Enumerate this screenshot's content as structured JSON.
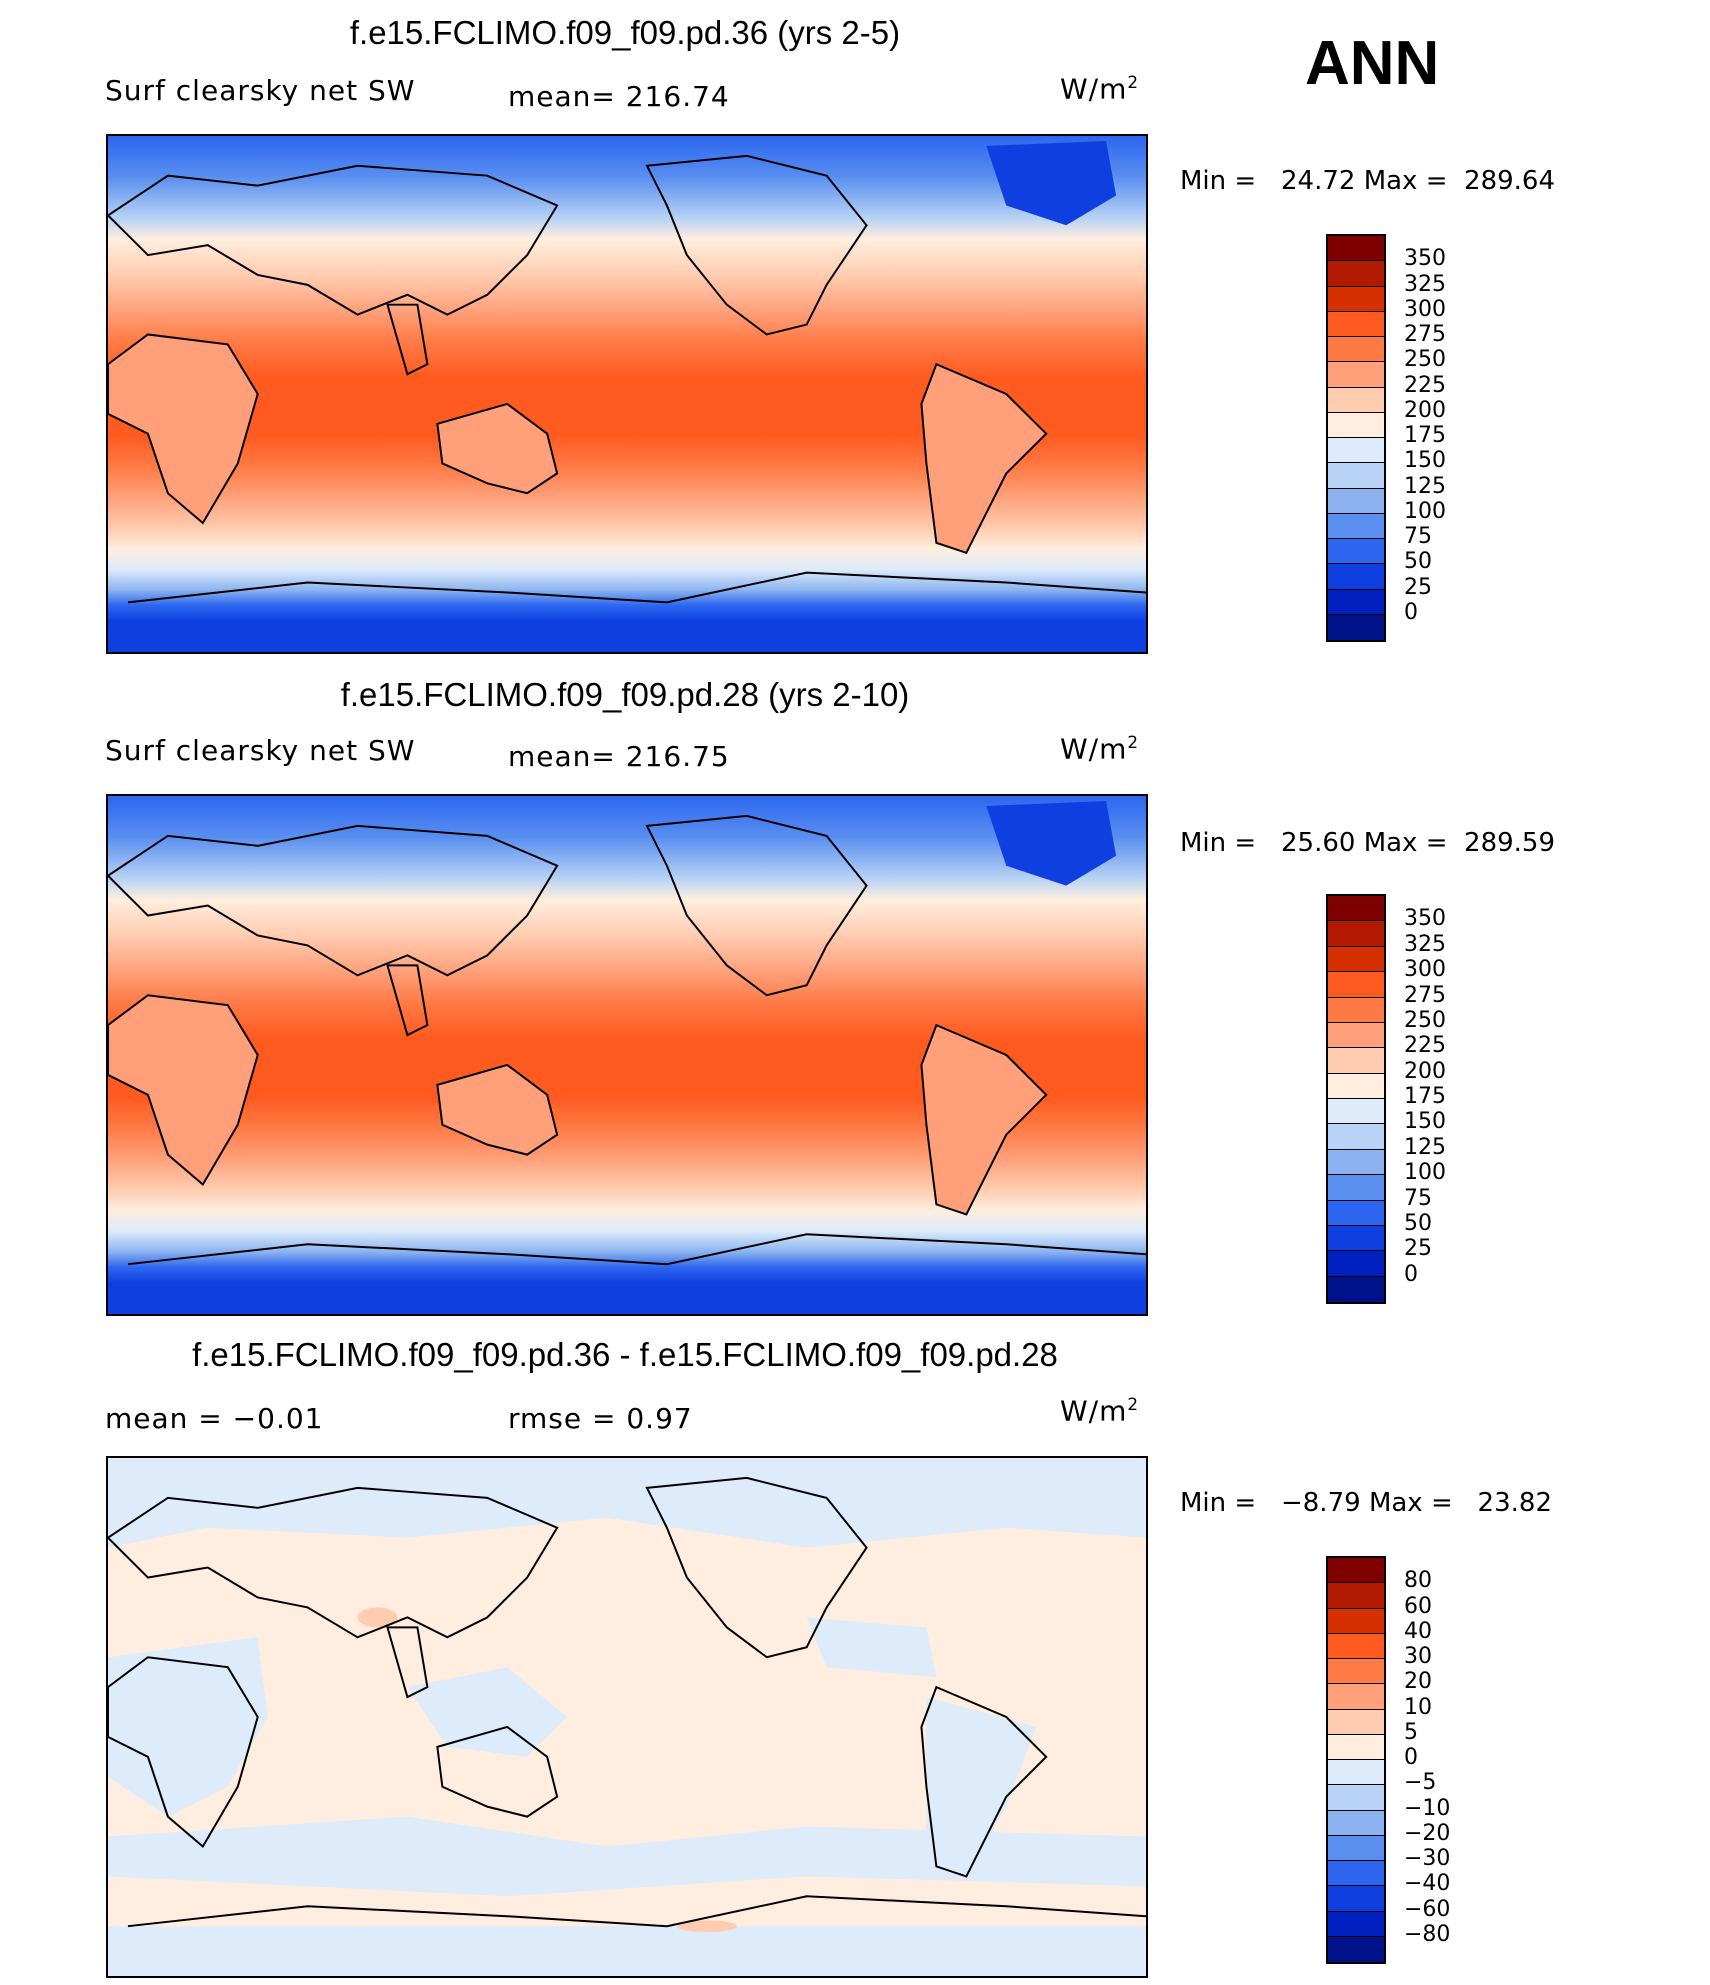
{
  "season": "ANN",
  "panels": [
    {
      "id": "p1",
      "title": "f.e15.FCLIMO.f09_f09.pd.36 (yrs 2-5)",
      "left_text": "Surf clearsky net SW",
      "middle_text": "mean= 216.74",
      "units": "W/m",
      "units_sup": "2",
      "min_label": "Min =",
      "min_value": "24.72",
      "max_label": "Max =",
      "max_value": "289.64",
      "colorbar_labels": [
        "350",
        "325",
        "300",
        "275",
        "250",
        "225",
        "200",
        "175",
        "150",
        "125",
        "100",
        "75",
        "50",
        "25",
        "0"
      ]
    },
    {
      "id": "p2",
      "title": "f.e15.FCLIMO.f09_f09.pd.28 (yrs 2-10)",
      "left_text": "Surf clearsky net SW",
      "middle_text": "mean= 216.75",
      "units": "W/m",
      "units_sup": "2",
      "min_label": "Min =",
      "min_value": "25.60",
      "max_label": "Max =",
      "max_value": "289.59",
      "colorbar_labels": [
        "350",
        "325",
        "300",
        "275",
        "250",
        "225",
        "200",
        "175",
        "150",
        "125",
        "100",
        "75",
        "50",
        "25",
        "0"
      ]
    },
    {
      "id": "p3",
      "title": "f.e15.FCLIMO.f09_f09.pd.36 - f.e15.FCLIMO.f09_f09.pd.28",
      "left_text": "mean =   −0.01",
      "middle_text": "rmse =    0.97",
      "units": "W/m",
      "units_sup": "2",
      "min_label": "Min =",
      "min_value": "−8.79",
      "max_label": "Max =",
      "max_value": "23.82",
      "colorbar_labels": [
        "80",
        "60",
        "40",
        "30",
        "20",
        "10",
        "5",
        "0",
        "−5",
        "−10",
        "−20",
        "−30",
        "−40",
        "−60",
        "−80"
      ]
    }
  ],
  "colors": {
    "colorbar": [
      "#7f0000",
      "#b11a00",
      "#d63000",
      "#ff5a1f",
      "#ff7a45",
      "#ffa07a",
      "#ffccb0",
      "#ffeedf",
      "#ddebfa",
      "#b8d3f5",
      "#8cb3f0",
      "#5a8ff0",
      "#2c66f0",
      "#0f3fe0",
      "#0020c0",
      "#00128a"
    ]
  }
}
